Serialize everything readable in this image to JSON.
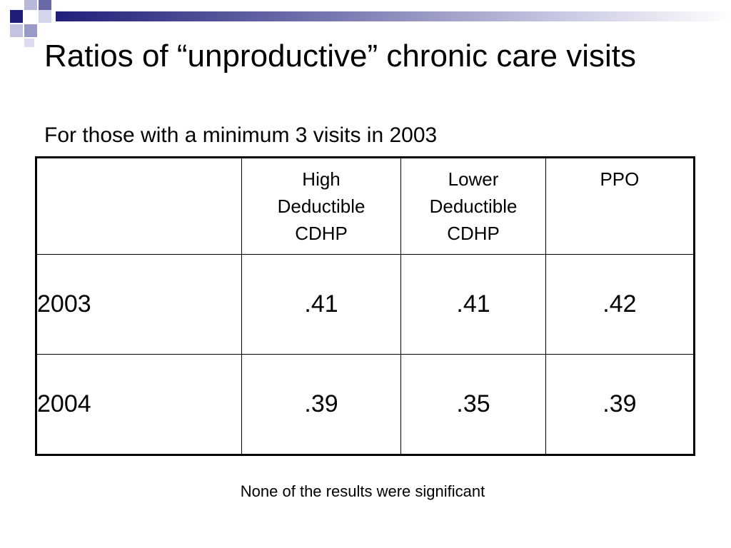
{
  "slide": {
    "title": "Ratios of “unproductive” chronic care visits",
    "subtitle": "For those with a minimum 3 visits in 2003",
    "footnote": "None of the results were significant"
  },
  "table": {
    "columns": [
      "",
      "High Deductible CDHP",
      "Lower Deductible CDHP",
      "PPO"
    ],
    "rows": [
      {
        "label": "2003",
        "values": [
          ".41",
          ".41",
          ".42"
        ]
      },
      {
        "label": "2004",
        "values": [
          ".39",
          ".35",
          ".39"
        ]
      }
    ]
  },
  "colors": {
    "accent_dark": "#1f1f7a",
    "accent_light": "#9a9ac8",
    "text": "#000000",
    "background": "#ffffff"
  }
}
